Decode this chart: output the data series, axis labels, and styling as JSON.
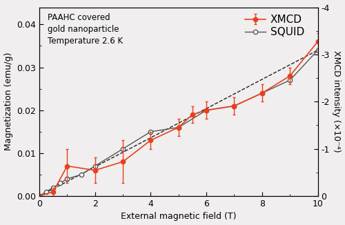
{
  "xmcd_x": [
    0,
    0.5,
    1.0,
    2.0,
    3.0,
    4.0,
    5.0,
    5.5,
    6.0,
    7.0,
    8.0,
    9.0,
    10.0
  ],
  "xmcd_y": [
    0.0,
    0.001,
    0.007,
    0.006,
    0.008,
    0.013,
    0.016,
    0.019,
    0.02,
    0.021,
    0.024,
    0.028,
    0.036
  ],
  "xmcd_yerr": [
    0.0,
    0.001,
    0.004,
    0.003,
    0.005,
    0.002,
    0.002,
    0.002,
    0.002,
    0.002,
    0.002,
    0.002,
    0.002
  ],
  "squid_x": [
    0,
    0.25,
    0.5,
    0.75,
    1.0,
    1.5,
    2.0,
    3.0,
    4.0,
    5.0,
    6.0,
    7.0,
    8.0,
    9.0,
    10.0
  ],
  "squid_y": [
    0.0,
    0.001,
    0.002,
    0.003,
    0.004,
    0.005,
    0.007,
    0.011,
    0.015,
    0.016,
    0.02,
    0.021,
    0.024,
    0.027,
    0.034
  ],
  "fit_x": [
    0,
    10
  ],
  "fit_y": [
    0,
    0.034
  ],
  "xmcd_color": "#e8401c",
  "squid_color": "#555555",
  "fit_color": "#222222",
  "bg_color": "#f0eeee",
  "ylabel_left": "Magnetization (emu/g)",
  "ylabel_right": "XMCD intensity (×10⁻⁴)",
  "xlabel": "External magnetic field (T)",
  "annotation": "PAAHC covered\ngold nanoparticle\nTemperature 2.6 K",
  "xlim": [
    0,
    10
  ],
  "ylim_left": [
    0,
    0.044
  ],
  "yticks_left": [
    0.0,
    0.01,
    0.02,
    0.03,
    0.04
  ],
  "yticks_right_vals": [
    0,
    -1,
    -2,
    -3,
    -4
  ],
  "yticks_right_labels": [
    "0",
    "-1",
    "-2",
    "-3",
    "-4"
  ],
  "xticks": [
    0,
    2,
    4,
    6,
    8,
    10
  ],
  "legend_xmcd": "XMCD",
  "legend_squid": "SQUID"
}
